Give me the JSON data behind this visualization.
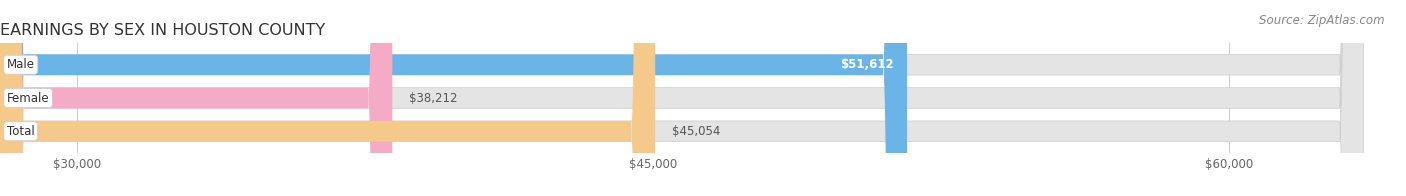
{
  "title": "EARNINGS BY SEX IN HOUSTON COUNTY",
  "source": "Source: ZipAtlas.com",
  "categories": [
    "Male",
    "Female",
    "Total"
  ],
  "values": [
    51612,
    38212,
    45054
  ],
  "bar_colors": [
    "#6ab4e8",
    "#f5aac5",
    "#f5c98a"
  ],
  "bar_bg_color": "#e4e4e4",
  "xmin": 28000,
  "xmax": 63500,
  "xticks": [
    30000,
    45000,
    60000
  ],
  "xtick_labels": [
    "$30,000",
    "$45,000",
    "$60,000"
  ],
  "title_fontsize": 11.5,
  "tick_fontsize": 8.5,
  "bar_label_fontsize": 8.5,
  "category_fontsize": 8.5,
  "source_fontsize": 8.5,
  "background_color": "#ffffff",
  "bar_height": 0.62,
  "value_labels": [
    "$51,612",
    "$38,212",
    "$45,054"
  ],
  "label_inside": [
    true,
    false,
    false
  ]
}
